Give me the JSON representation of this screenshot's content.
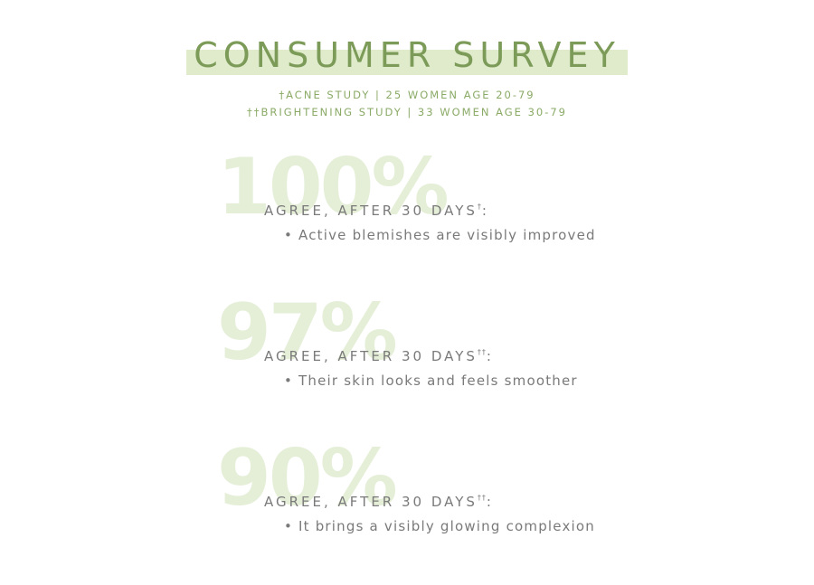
{
  "header": {
    "title": "CONSUMER SURVEY",
    "study_1": "†ACNE STUDY | 25 WOMEN AGE 20-79",
    "study_2": "††BRIGHTENING STUDY | 33 WOMEN AGE 30-79"
  },
  "colors": {
    "title": "#7c9b58",
    "highlight": "#dfebca",
    "big_number": "#e5efd8",
    "body_text": "#7a7a7a"
  },
  "stats": [
    {
      "percent": "100%",
      "agree": "AGREE, AFTER 30 DAYS",
      "mark": "†",
      "colon": ":",
      "bullet": "• Active blemishes are visibly improved"
    },
    {
      "percent": "97%",
      "agree": "AGREE, AFTER 30 DAYS",
      "mark": "††",
      "colon": ":",
      "bullet": "• Their skin looks and feels smoother"
    },
    {
      "percent": "90%",
      "agree": "AGREE, AFTER 30 DAYS",
      "mark": "††",
      "colon": ":",
      "bullet": "• It brings a visibly glowing complexion"
    }
  ]
}
